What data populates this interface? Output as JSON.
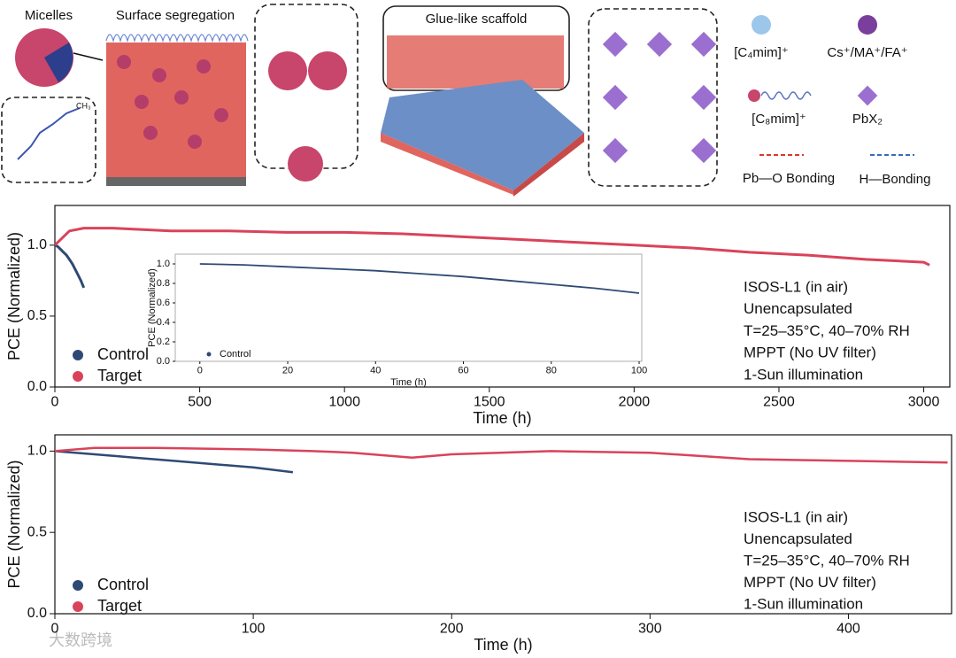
{
  "schematic": {
    "micelles": "Micelles",
    "surface": "Surface segregation",
    "glue": "Glue-like scaffold",
    "ch3": "CH₃",
    "legend": [
      "[C₄mim]⁺",
      "Cs⁺/MA⁺/FA⁺",
      "[C₈mim]⁺",
      "PbX₂",
      "Pb—O Bonding",
      "H—Bonding"
    ],
    "watermark": "大数跨境"
  },
  "chart_data": [
    {
      "type": "line",
      "xlabel": "Time (h)",
      "ylabel": "PCE (Normalized)",
      "xlim": [
        0,
        3090
      ],
      "ylim": [
        0,
        1.28
      ],
      "xticks": [
        0,
        500,
        1000,
        1500,
        2000,
        2500,
        3000
      ],
      "yticks": [
        {
          "value": 0,
          "label": "0.0"
        },
        0.5,
        {
          "value": 1,
          "label": "1.0"
        }
      ],
      "legend": "lower left",
      "annotations": [
        "ISOS-L1 (in air)",
        "Unencapsulated",
        "T=25–35°C, 40–70% RH",
        "MPPT (No UV filter)",
        "1-Sun illumination"
      ],
      "series": [
        {
          "name": "Control",
          "color": "#2e4a74",
          "x": [
            0,
            10,
            20,
            30,
            40,
            50,
            60,
            70,
            80,
            90,
            100
          ],
          "values": [
            1.0,
            0.99,
            0.97,
            0.95,
            0.93,
            0.9,
            0.87,
            0.83,
            0.79,
            0.75,
            0.7
          ]
        },
        {
          "name": "Target",
          "color": "#d9435a",
          "x": [
            0,
            50,
            100,
            200,
            400,
            600,
            800,
            1000,
            1200,
            1400,
            1600,
            1800,
            2000,
            2200,
            2400,
            2600,
            2800,
            3000,
            3020
          ],
          "values": [
            1.0,
            1.1,
            1.12,
            1.12,
            1.1,
            1.1,
            1.09,
            1.09,
            1.08,
            1.06,
            1.04,
            1.02,
            1.0,
            0.98,
            0.95,
            0.93,
            0.9,
            0.88,
            0.86
          ]
        }
      ]
    },
    {
      "type": "line",
      "xlabel": "Time (h)",
      "ylabel": "PCE (Normalized)",
      "xlim": [
        -5.6,
        100.6
      ],
      "ylim": [
        0,
        1.1
      ],
      "xticks": [
        0,
        20,
        40,
        60,
        80,
        100
      ],
      "yticks": [
        {
          "value": 0,
          "label": "0.0"
        },
        0.2,
        0.4,
        0.6,
        0.8,
        {
          "value": 1,
          "label": "1.0"
        }
      ],
      "legend": "lower left",
      "series": [
        {
          "name": "Control",
          "color": "#2e4a74",
          "x": [
            0,
            10,
            20,
            30,
            40,
            50,
            60,
            70,
            80,
            90,
            100
          ],
          "values": [
            1.0,
            0.99,
            0.97,
            0.95,
            0.93,
            0.9,
            0.87,
            0.83,
            0.79,
            0.75,
            0.7
          ]
        }
      ]
    },
    {
      "type": "line",
      "xlabel": "Time (h)",
      "ylabel": "PCE (Normalized)",
      "xlim": [
        0,
        452
      ],
      "ylim": [
        0,
        1.1
      ],
      "xticks": [
        0,
        100,
        200,
        300,
        400
      ],
      "yticks": [
        {
          "value": 0,
          "label": "0.0"
        },
        0.5,
        {
          "value": 1,
          "label": "1.0"
        }
      ],
      "legend": "lower left",
      "annotations": [
        "ISOS-L1 (in air)",
        "Unencapsulated",
        "T=25–35°C, 40–70% RH",
        "MPPT (No UV filter)",
        "1-Sun illumination"
      ],
      "series": [
        {
          "name": "Control",
          "color": "#2e4a74",
          "x": [
            0,
            20,
            40,
            60,
            80,
            100,
            120
          ],
          "values": [
            1.0,
            0.98,
            0.96,
            0.94,
            0.92,
            0.9,
            0.87
          ]
        },
        {
          "name": "Target",
          "color": "#d9435a",
          "x": [
            0,
            20,
            50,
            100,
            130,
            150,
            180,
            200,
            250,
            300,
            350,
            400,
            450
          ],
          "values": [
            1.0,
            1.02,
            1.02,
            1.01,
            1.0,
            0.99,
            0.96,
            0.98,
            1.0,
            0.99,
            0.95,
            0.94,
            0.93
          ]
        }
      ]
    }
  ]
}
